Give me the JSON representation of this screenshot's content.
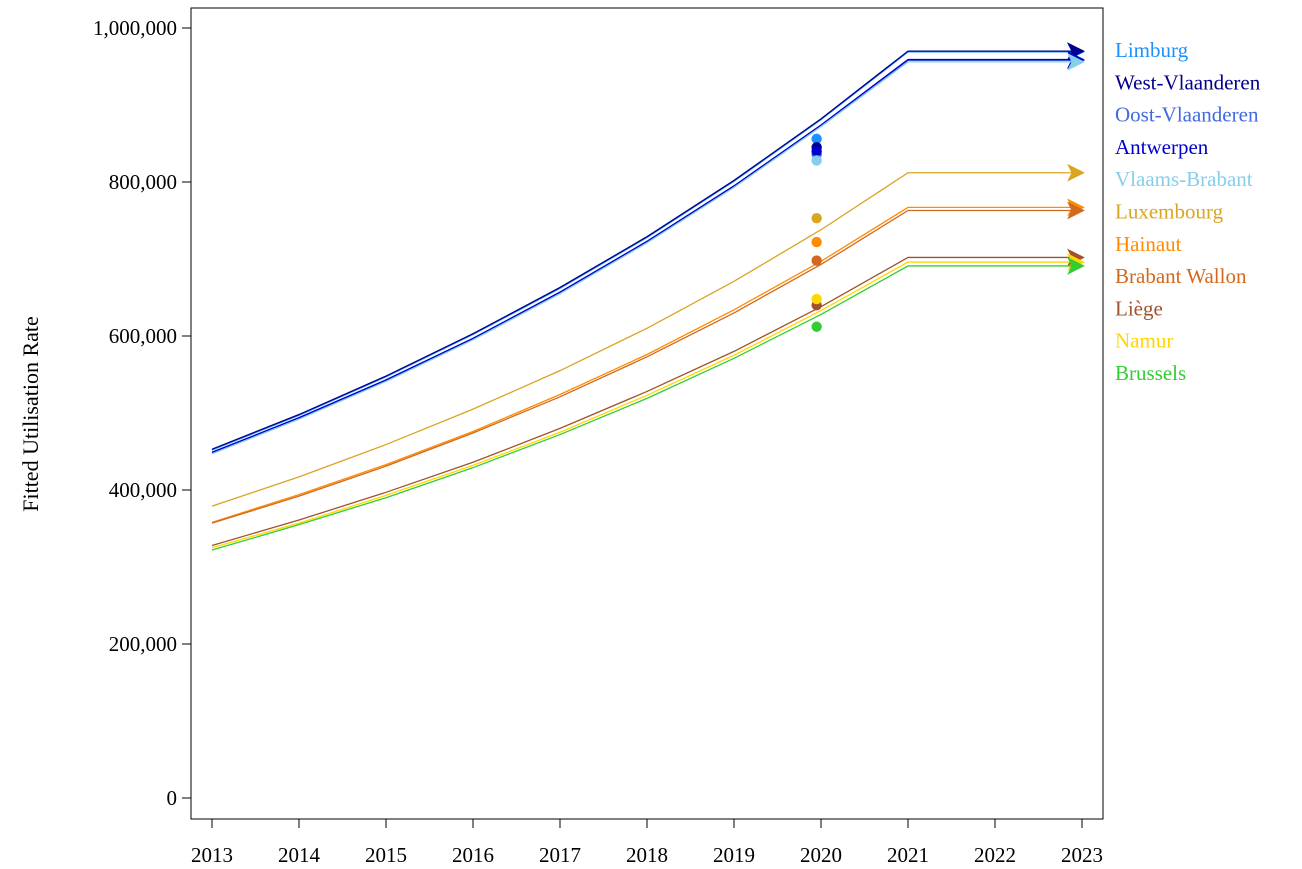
{
  "chart_data": {
    "type": "line",
    "title": "",
    "xlabel": "",
    "ylabel": "Fitted Utilisation Rate",
    "x": [
      2013,
      2014,
      2015,
      2016,
      2017,
      2018,
      2019,
      2020,
      2021,
      2022,
      2023
    ],
    "xlim": [
      2013,
      2023
    ],
    "ylim": [
      0,
      1000000
    ],
    "x_ticks": [
      "2013",
      "2014",
      "2015",
      "2016",
      "2017",
      "2018",
      "2019",
      "2020",
      "2021",
      "2022",
      "2023"
    ],
    "y_ticks": [
      {
        "value": 0,
        "label": "0"
      },
      {
        "value": 200000,
        "label": "200,000"
      },
      {
        "value": 400000,
        "label": "400,000"
      },
      {
        "value": 600000,
        "label": "600,000"
      },
      {
        "value": 800000,
        "label": "800,000"
      },
      {
        "value": 1000000,
        "label": "1,000,000"
      }
    ],
    "grid": false,
    "legend_position": "right",
    "observed_x": 2019.95,
    "series": [
      {
        "name": "Limburg",
        "color": "#1E90FF",
        "values": [
          452000,
          497000,
          547000,
          602000,
          662000,
          728000,
          801000,
          881000,
          969000,
          969000,
          969000
        ],
        "observed": 856000
      },
      {
        "name": "West-Vlaanderen",
        "color": "#00008B",
        "values": [
          453000,
          498000,
          548000,
          603000,
          663000,
          729000,
          802000,
          882000,
          970000,
          970000,
          970000
        ],
        "observed": 845000
      },
      {
        "name": "Oost-Vlaanderen",
        "color": "#4169E1",
        "values": [
          448000,
          493000,
          542000,
          596000,
          656000,
          722000,
          794000,
          873000,
          958000,
          958000,
          958000
        ],
        "observed": 836000
      },
      {
        "name": "Antwerpen",
        "color": "#0000CD",
        "values": [
          449000,
          494000,
          543000,
          597000,
          657000,
          723000,
          795000,
          874000,
          959000,
          959000,
          959000
        ],
        "observed": 840000
      },
      {
        "name": "Vlaams-Brabant",
        "color": "#87CEEB",
        "values": [
          447000,
          492000,
          541000,
          595000,
          655000,
          721000,
          793000,
          872000,
          956000,
          956000,
          956000
        ],
        "observed": 828000
      },
      {
        "name": "Luxembourg",
        "color": "#DAA520",
        "values": [
          379000,
          417000,
          459000,
          505000,
          555000,
          610000,
          671000,
          738000,
          812000,
          812000,
          812000
        ],
        "observed": 753000
      },
      {
        "name": "Hainaut",
        "color": "#FF8C00",
        "values": [
          358000,
          394000,
          433000,
          476000,
          524000,
          576000,
          634000,
          697000,
          767000,
          767000,
          767000
        ],
        "observed": 722000
      },
      {
        "name": "Brabant Wallon",
        "color": "#D2691E",
        "values": [
          357000,
          392000,
          431000,
          474000,
          521000,
          573000,
          630000,
          693000,
          763000,
          763000,
          763000
        ],
        "observed": 698000
      },
      {
        "name": "Liège",
        "color": "#A0522D",
        "values": [
          328000,
          361000,
          397000,
          436000,
          480000,
          528000,
          580000,
          638000,
          702000,
          702000,
          702000
        ],
        "observed": 640000
      },
      {
        "name": "Namur",
        "color": "#FFD700",
        "values": [
          325000,
          357000,
          393000,
          432000,
          475000,
          523000,
          575000,
          633000,
          696000,
          696000,
          696000
        ],
        "observed": 648000
      },
      {
        "name": "Brussels",
        "color": "#32CD32",
        "values": [
          322000,
          355000,
          390000,
          429000,
          472000,
          519000,
          571000,
          628000,
          691000,
          691000,
          691000
        ],
        "observed": 612000
      }
    ]
  }
}
